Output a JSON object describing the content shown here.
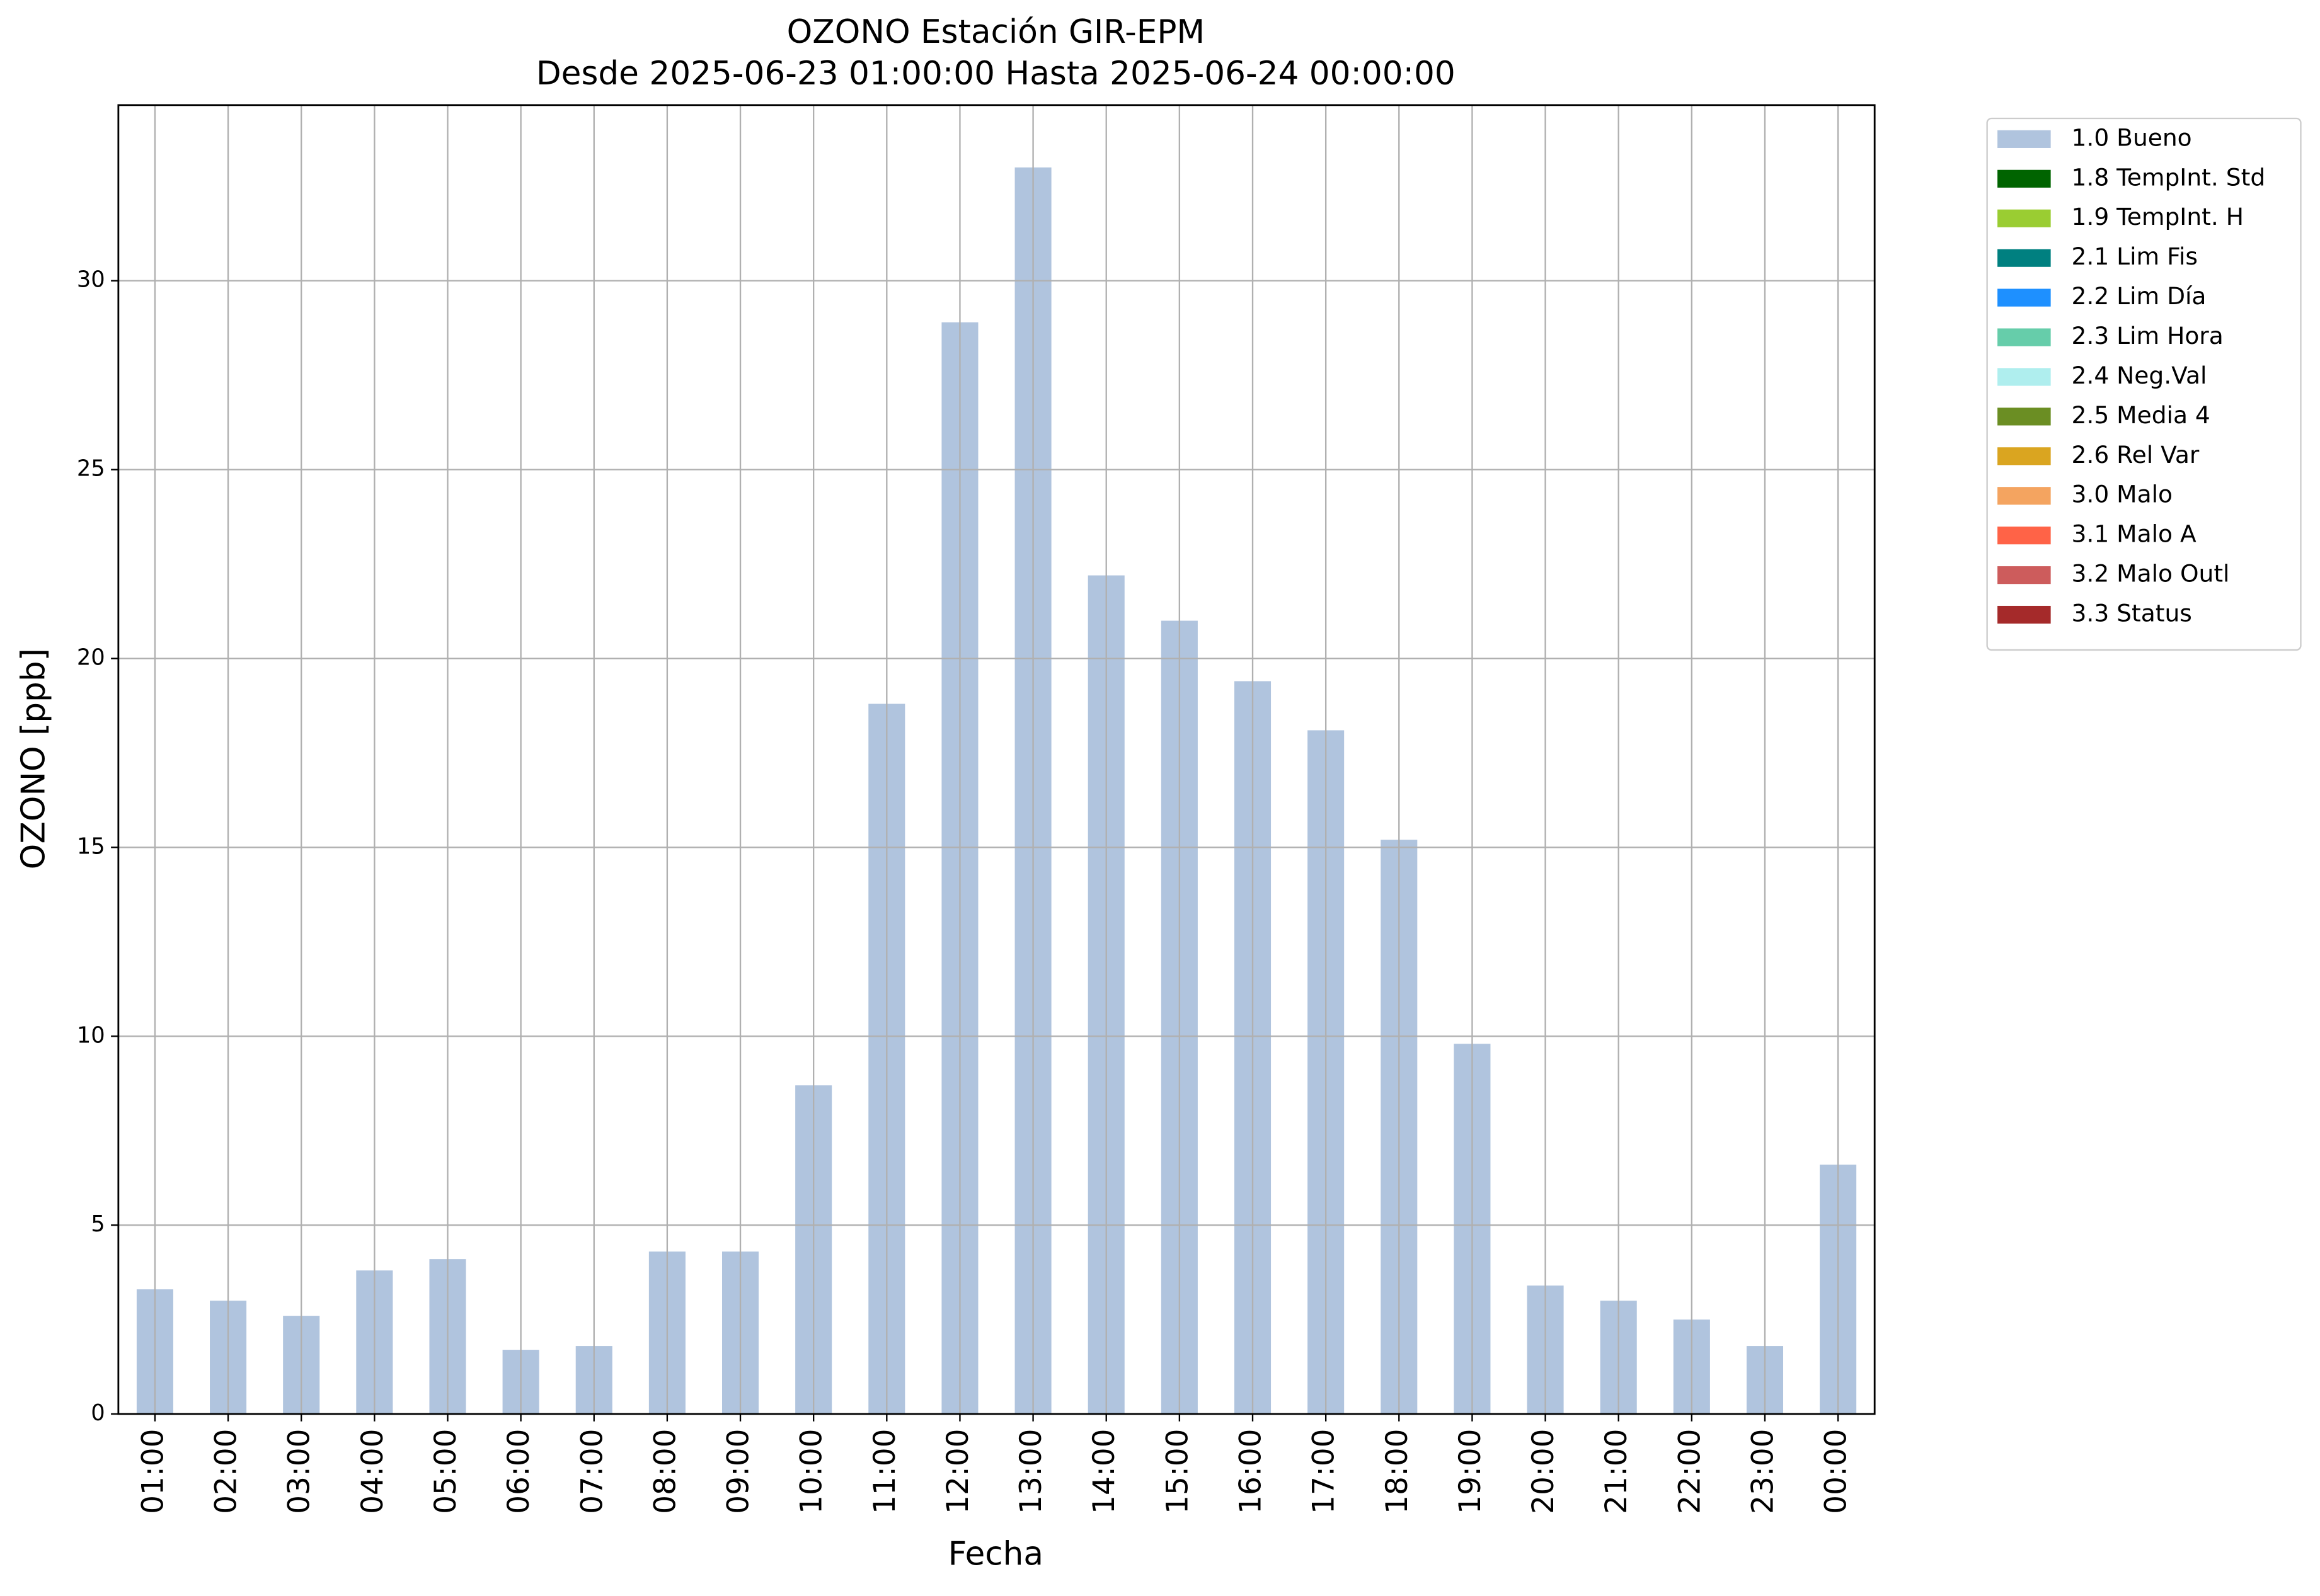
{
  "chart_data": {
    "type": "bar",
    "title": "OZONO Estación GIR-EPM",
    "subtitle": "Desde 2025-06-23 01:00:00 Hasta 2025-06-24 00:00:00",
    "x_label": "Fecha",
    "y_label": "OZONO [ppb]",
    "categories": [
      "01:00",
      "02:00",
      "03:00",
      "04:00",
      "05:00",
      "06:00",
      "07:00",
      "08:00",
      "09:00",
      "10:00",
      "11:00",
      "12:00",
      "13:00",
      "14:00",
      "15:00",
      "16:00",
      "17:00",
      "18:00",
      "19:00",
      "20:00",
      "21:00",
      "22:00",
      "23:00",
      "00:00"
    ],
    "series": [
      {
        "name": "1.0 Bueno",
        "color": "#b0c4de",
        "values": [
          3.3,
          3.0,
          2.6,
          3.8,
          4.1,
          1.7,
          1.8,
          4.3,
          4.3,
          8.7,
          18.8,
          28.9,
          33.0,
          22.2,
          21.0,
          19.4,
          18.1,
          15.2,
          9.8,
          3.4,
          3.0,
          2.5,
          1.8,
          6.6
        ]
      },
      {
        "name": "1.8 TempInt. Std",
        "color": "#006400",
        "values": [
          null,
          null,
          null,
          null,
          null,
          null,
          null,
          null,
          null,
          null,
          null,
          null,
          null,
          null,
          null,
          null,
          null,
          null,
          null,
          null,
          null,
          null,
          null,
          null
        ]
      },
      {
        "name": "1.9 TempInt. H",
        "color": "#9acd32",
        "values": [
          null,
          null,
          null,
          null,
          null,
          null,
          null,
          null,
          null,
          null,
          null,
          null,
          null,
          null,
          null,
          null,
          null,
          null,
          null,
          null,
          null,
          null,
          null,
          null
        ]
      },
      {
        "name": "2.1 Lim Fis",
        "color": "#008080",
        "values": [
          null,
          null,
          null,
          null,
          null,
          null,
          null,
          null,
          null,
          null,
          null,
          null,
          null,
          null,
          null,
          null,
          null,
          null,
          null,
          null,
          null,
          null,
          null,
          null
        ]
      },
      {
        "name": "2.2 Lim Día",
        "color": "#1e90ff",
        "values": [
          null,
          null,
          null,
          null,
          null,
          null,
          null,
          null,
          null,
          null,
          null,
          null,
          null,
          null,
          null,
          null,
          null,
          null,
          null,
          null,
          null,
          null,
          null,
          null
        ]
      },
      {
        "name": "2.3 Lim Hora",
        "color": "#66cdaa",
        "values": [
          null,
          null,
          null,
          null,
          null,
          null,
          null,
          null,
          null,
          null,
          null,
          null,
          null,
          null,
          null,
          null,
          null,
          null,
          null,
          null,
          null,
          null,
          null,
          null
        ]
      },
      {
        "name": "2.4 Neg.Val",
        "color": "#afeeee",
        "values": [
          null,
          null,
          null,
          null,
          null,
          null,
          null,
          null,
          null,
          null,
          null,
          null,
          null,
          null,
          null,
          null,
          null,
          null,
          null,
          null,
          null,
          null,
          null,
          null
        ]
      },
      {
        "name": "2.5 Media 4",
        "color": "#6b8e23",
        "values": [
          null,
          null,
          null,
          null,
          null,
          null,
          null,
          null,
          null,
          null,
          null,
          null,
          null,
          null,
          null,
          null,
          null,
          null,
          null,
          null,
          null,
          null,
          null,
          null
        ]
      },
      {
        "name": "2.6 Rel Var",
        "color": "#daa520",
        "values": [
          null,
          null,
          null,
          null,
          null,
          null,
          null,
          null,
          null,
          null,
          null,
          null,
          null,
          null,
          null,
          null,
          null,
          null,
          null,
          null,
          null,
          null,
          null,
          null
        ]
      },
      {
        "name": "3.0 Malo",
        "color": "#f4a460",
        "values": [
          null,
          null,
          null,
          null,
          null,
          null,
          null,
          null,
          null,
          null,
          null,
          null,
          null,
          null,
          null,
          null,
          null,
          null,
          null,
          null,
          null,
          null,
          null,
          null
        ]
      },
      {
        "name": "3.1 Malo A",
        "color": "#ff6347",
        "values": [
          null,
          null,
          null,
          null,
          null,
          null,
          null,
          null,
          null,
          null,
          null,
          null,
          null,
          null,
          null,
          null,
          null,
          null,
          null,
          null,
          null,
          null,
          null,
          null
        ]
      },
      {
        "name": "3.2 Malo Outl",
        "color": "#cd5c5c",
        "values": [
          null,
          null,
          null,
          null,
          null,
          null,
          null,
          null,
          null,
          null,
          null,
          null,
          null,
          null,
          null,
          null,
          null,
          null,
          null,
          null,
          null,
          null,
          null,
          null
        ]
      },
      {
        "name": "3.3 Status",
        "color": "#a52a2a",
        "values": [
          null,
          null,
          null,
          null,
          null,
          null,
          null,
          null,
          null,
          null,
          null,
          null,
          null,
          null,
          null,
          null,
          null,
          null,
          null,
          null,
          null,
          null,
          null,
          null
        ]
      }
    ],
    "ylim": [
      0,
      34.65
    ],
    "yticks": [
      0,
      5,
      10,
      15,
      20,
      25,
      30
    ],
    "grid": true,
    "stacked": true,
    "legend": "outside-upper-right"
  }
}
